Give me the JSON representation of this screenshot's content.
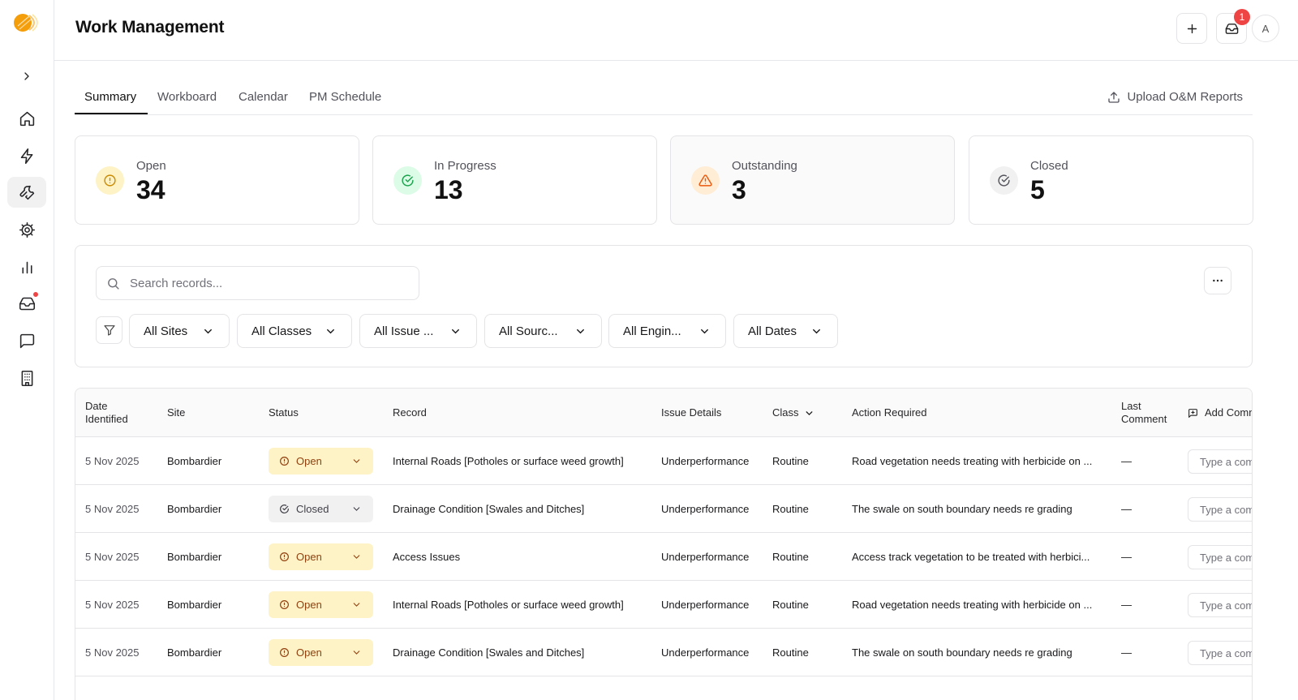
{
  "app": {
    "page_title": "Work Management",
    "notification_count": "1",
    "avatar_initial": "A"
  },
  "sidebar": {
    "items": [
      {
        "icon": "chevron-right-icon"
      },
      {
        "icon": "home-icon"
      },
      {
        "icon": "lightning-icon"
      },
      {
        "icon": "wrench-icon",
        "active": true
      },
      {
        "icon": "cog-icon"
      },
      {
        "icon": "bar-chart-icon"
      },
      {
        "icon": "inbox-icon",
        "has_dot": true
      },
      {
        "icon": "message-icon"
      },
      {
        "icon": "building-icon"
      }
    ]
  },
  "tabs": [
    {
      "label": "Summary",
      "active": true
    },
    {
      "label": "Workboard"
    },
    {
      "label": "Calendar"
    },
    {
      "label": "PM Schedule"
    }
  ],
  "upload_label": "Upload O&M Reports",
  "stats": [
    {
      "label": "Open",
      "value": "34",
      "icon": "alert-circle-icon",
      "color": "#ca8a04",
      "bg": "#fef3c7"
    },
    {
      "label": "In Progress",
      "value": "13",
      "icon": "check-circle-icon",
      "color": "#16a34a",
      "bg": "#dcfce7"
    },
    {
      "label": "Outstanding",
      "value": "3",
      "icon": "warning-triangle-icon",
      "color": "#ea580c",
      "bg": "#ffedd5"
    },
    {
      "label": "Closed",
      "value": "5",
      "icon": "check-circle-icon",
      "color": "#52525b",
      "bg": "#f1f1f2"
    }
  ],
  "search": {
    "placeholder": "Search records..."
  },
  "filters": [
    "All Sites",
    "All Classes",
    "All Issue ...",
    "All Sourc...",
    "All Engin...",
    "All Dates"
  ],
  "table": {
    "headers": {
      "date": "Date Identified",
      "site": "Site",
      "status": "Status",
      "record": "Record",
      "issue": "Issue Details",
      "class": "Class",
      "action": "Action Required",
      "last_comment": "Last Comment",
      "add_comment": "Add Comment"
    },
    "comment_placeholder": "Type a comment",
    "rows": [
      {
        "date": "5 Nov 2025",
        "site": "Bombardier",
        "status": "Open",
        "record": "Internal Roads [Potholes or surface weed growth]",
        "issue": "Underperformance",
        "class": "Routine",
        "action": "Road vegetation needs treating with herbicide on ...",
        "last_comment": "—"
      },
      {
        "date": "5 Nov 2025",
        "site": "Bombardier",
        "status": "Closed",
        "record": "Drainage Condition [Swales and Ditches]",
        "issue": "Underperformance",
        "class": "Routine",
        "action": "The swale on south boundary needs re grading",
        "last_comment": "—"
      },
      {
        "date": "5 Nov 2025",
        "site": "Bombardier",
        "status": "Open",
        "record": "Access Issues",
        "issue": "Underperformance",
        "class": "Routine",
        "action": "Access track vegetation to be treated with herbici...",
        "last_comment": "—"
      },
      {
        "date": "5 Nov 2025",
        "site": "Bombardier",
        "status": "Open",
        "record": "Internal Roads [Potholes or surface weed growth]",
        "issue": "Underperformance",
        "class": "Routine",
        "action": "Road vegetation needs treating with herbicide on ...",
        "last_comment": "—"
      },
      {
        "date": "5 Nov 2025",
        "site": "Bombardier",
        "status": "Open",
        "record": "Drainage Condition [Swales and Ditches]",
        "issue": "Underperformance",
        "class": "Routine",
        "action": "The swale on south boundary needs re grading",
        "last_comment": "—"
      }
    ]
  }
}
